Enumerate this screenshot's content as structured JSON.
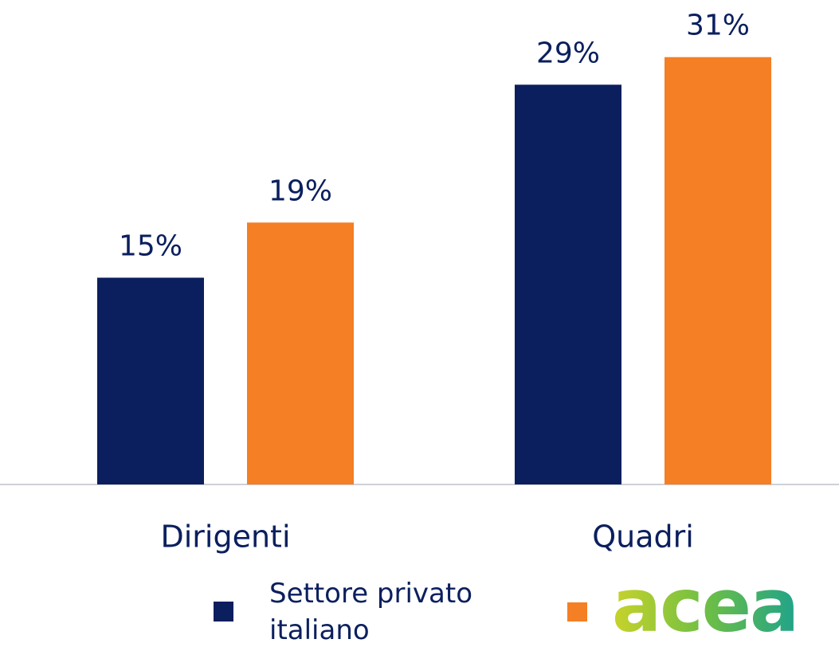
{
  "chart_data": {
    "type": "bar",
    "categories": [
      "Dirigenti",
      "Quadri"
    ],
    "series": [
      {
        "name": "Settore privato italiano",
        "color": "#0b1f5e",
        "values": [
          15,
          29
        ],
        "value_labels": [
          "15%",
          "29%"
        ]
      },
      {
        "name": "acea",
        "color": "#f47f24",
        "values": [
          19,
          31
        ],
        "value_labels": [
          "19%",
          "31%"
        ]
      }
    ],
    "ylim": [
      0,
      35
    ]
  }
}
